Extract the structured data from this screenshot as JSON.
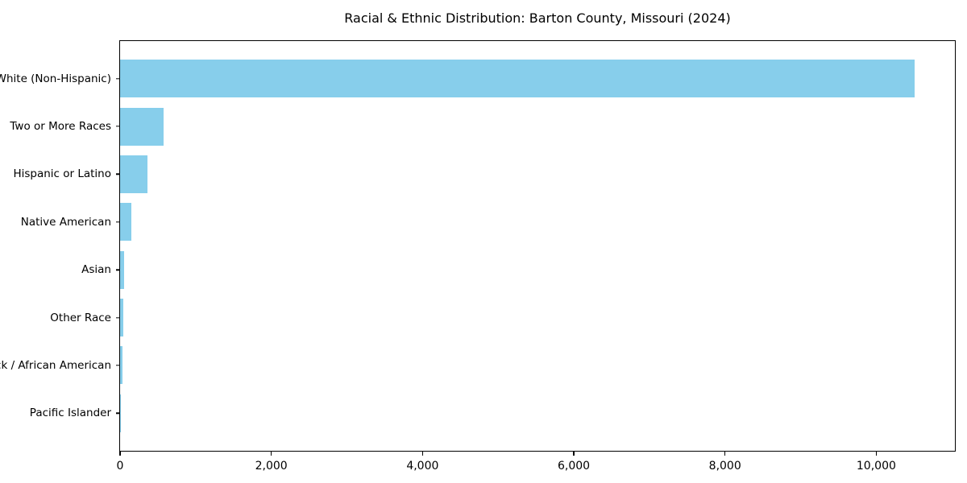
{
  "chart_data": {
    "type": "bar",
    "orientation": "horizontal",
    "title": "Racial & Ethnic Distribution: Barton County, Missouri (2024)",
    "xlabel": "",
    "ylabel": "",
    "categories": [
      "White (Non-Hispanic)",
      "Two or More Races",
      "Hispanic or Latino",
      "Native American",
      "Asian",
      "Other Race",
      "Black / African American",
      "Pacific Islander"
    ],
    "values": [
      10510,
      575,
      365,
      145,
      55,
      45,
      35,
      5
    ],
    "xlim": [
      0,
      11040
    ],
    "x_ticks": [
      0,
      2000,
      4000,
      6000,
      8000,
      10000
    ],
    "x_tick_labels": [
      "0",
      "2,000",
      "4,000",
      "6,000",
      "8,000",
      "10,000"
    ],
    "bar_color": "#87CEEB",
    "grid": false,
    "legend": false,
    "frame": "full-box"
  }
}
